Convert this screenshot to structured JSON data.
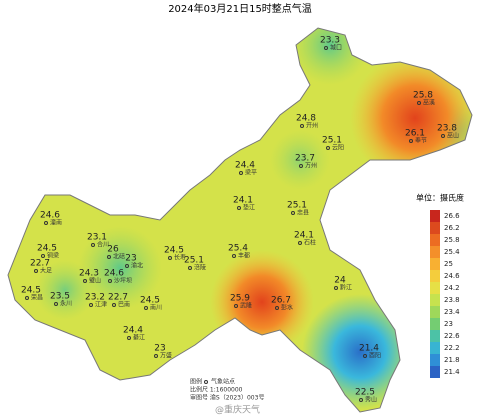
{
  "title": "2024年03月21日15时整点气温",
  "stations": [
    {
      "value": "23.3",
      "name": "城口"
    },
    {
      "value": "25.8",
      "name": "巫溪"
    },
    {
      "value": "26.1",
      "name": "奉节"
    },
    {
      "value": "23.8",
      "name": "巫山"
    },
    {
      "value": "24.8",
      "name": "开州"
    },
    {
      "value": "25.1",
      "name": "云阳"
    },
    {
      "value": "23.7",
      "name": "万州"
    },
    {
      "value": "24.4",
      "name": "梁平"
    },
    {
      "value": "24.1",
      "name": "垫江"
    },
    {
      "value": "25.1",
      "name": "忠县"
    },
    {
      "value": "24.1",
      "name": "石柱"
    },
    {
      "value": "25.4",
      "name": "丰都"
    },
    {
      "value": "24.5",
      "name": "长寿"
    },
    {
      "value": "25.1",
      "name": "涪陵"
    },
    {
      "value": "24.6",
      "name": "潼南"
    },
    {
      "value": "23.1",
      "name": "合川"
    },
    {
      "value": "24.5",
      "name": "铜梁"
    },
    {
      "value": "26",
      "name": "北碚"
    },
    {
      "value": "23",
      "name": "渝北"
    },
    {
      "value": "22.7",
      "name": "大足"
    },
    {
      "value": "24.3",
      "name": "璧山"
    },
    {
      "value": "24.6",
      "name": "沙坪坝"
    },
    {
      "value": "24.5",
      "name": "荣昌"
    },
    {
      "value": "23.5",
      "name": "永川"
    },
    {
      "value": "23.2",
      "name": "江津"
    },
    {
      "value": "22.7",
      "name": "巴南"
    },
    {
      "value": "24.5",
      "name": "南川"
    },
    {
      "value": "25.9",
      "name": "武隆"
    },
    {
      "value": "26.7",
      "name": "彭水"
    },
    {
      "value": "24",
      "name": "黔江"
    },
    {
      "value": "24.4",
      "name": "綦江"
    },
    {
      "value": "23",
      "name": "万盛"
    },
    {
      "value": "21.4",
      "name": "酉阳"
    },
    {
      "value": "22.5",
      "name": "秀山"
    }
  ],
  "legend": {
    "title": "单位：摄氏度",
    "levels": [
      26.6,
      26.2,
      25.8,
      25.4,
      25,
      24.6,
      24.2,
      23.8,
      23.4,
      23,
      22.6,
      22.2,
      21.8,
      21.4
    ],
    "colors": [
      "#c8261d",
      "#dc4a1e",
      "#ec6c22",
      "#f48f2a",
      "#f8b032",
      "#f4cd3c",
      "#e6e046",
      "#c6e24e",
      "#9fd85a",
      "#74cd72",
      "#4cc2a6",
      "#38b4d2",
      "#2f8fd6",
      "#2b63c4"
    ]
  },
  "footer": {
    "legend_label": "图例",
    "station_label": "气象站点",
    "scale": "比例尺  1:1600000",
    "approval": "审图号  渝S（2023）003号",
    "watermark": "@重庆天气"
  }
}
